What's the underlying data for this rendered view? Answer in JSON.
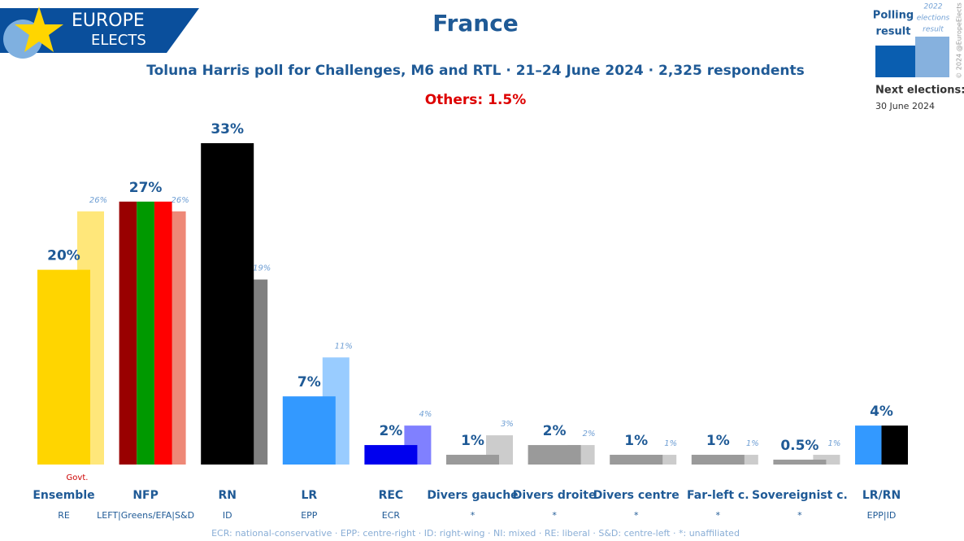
{
  "chart_data": {
    "type": "bar",
    "brand": [
      "EUROPE",
      "ELECTS"
    ],
    "title": "France",
    "subtitle": "Toluna Harris poll for Challenges, M6 and RTL · 21–24 June 2024 · 2,325 respondents",
    "annotation": "Others: 1.5%",
    "legend": {
      "polling": [
        "Polling",
        "result"
      ],
      "result": [
        "2022",
        "elections",
        "result"
      ],
      "polling_color": "#0a5eb0",
      "result_color": "#86b1de"
    },
    "next_elections": [
      "Next elections:",
      "30 June 2024"
    ],
    "copyright": "© 2024 @EuropeElects",
    "footnote": "ECR: national-conservative · EPP: centre-right · ID: right-wing · NI: mixed · RE: liberal · S&D: centre-left · *: unaffiliated",
    "govt_label": "Govt.",
    "ylim": [
      0,
      33
    ],
    "categories": [
      "Ensemble",
      "NFP",
      "RN",
      "LR",
      "REC",
      "Divers gauche",
      "Divers droite",
      "Divers centre",
      "Far-left c.",
      "Sovereignist c.",
      "LR/RN"
    ],
    "groups": [
      "RE",
      "LEFT|Greens/EFA|S&D",
      "ID",
      "EPP",
      "ECR",
      "*",
      "*",
      "*",
      "*",
      "*",
      "EPP|ID"
    ],
    "series": [
      {
        "name": "Polling result",
        "values": [
          20,
          27,
          33,
          7,
          2,
          1,
          2,
          1,
          1,
          0.5,
          4
        ],
        "value_labels": [
          "20%",
          "27%",
          "33%",
          "7%",
          "2%",
          "1%",
          "2%",
          "1%",
          "1%",
          "0.5%",
          "4%"
        ],
        "colors": [
          [
            "#ffd500"
          ],
          [
            "#990000",
            "#009900",
            "#ff0000"
          ],
          [
            "#000000"
          ],
          [
            "#3399ff"
          ],
          [
            "#0000ee"
          ],
          [
            "#9a9a9a"
          ],
          [
            "#9a9a9a"
          ],
          [
            "#9a9a9a"
          ],
          [
            "#9a9a9a"
          ],
          [
            "#9a9a9a"
          ],
          [
            "#3399ff",
            "#000000"
          ]
        ]
      },
      {
        "name": "2022 elections result",
        "values": [
          26,
          26,
          19,
          11,
          4,
          3,
          2,
          1,
          1,
          1,
          null
        ],
        "value_labels": [
          "26%",
          "26%",
          "19%",
          "11%",
          "4%",
          "3%",
          "2%",
          "1%",
          "1%",
          "1%",
          null
        ],
        "colors": [
          "#ffe77a",
          "#ee8877",
          "#808080",
          "#99ccff",
          "#8080ff",
          "#cccccc",
          "#cccccc",
          "#cccccc",
          "#cccccc",
          "#cccccc",
          null
        ]
      }
    ]
  }
}
